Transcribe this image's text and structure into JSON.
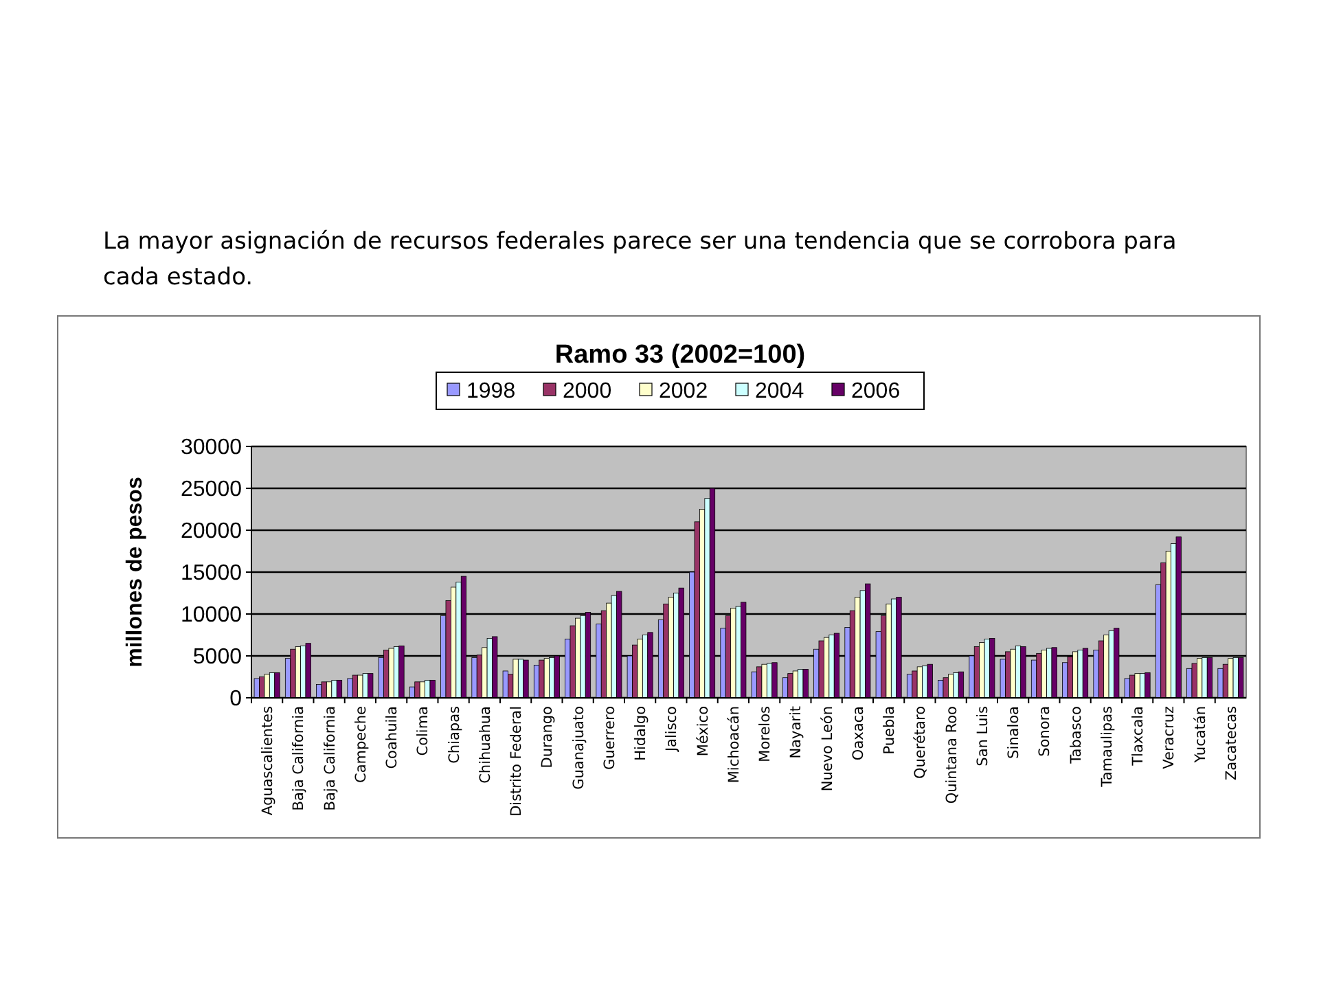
{
  "chart_data": {
    "type": "bar",
    "title": "Ramo 33 (2002=100)",
    "subtitle": "La mayor asignación de recursos federales parece ser una tendencia que se corrobora para cada estado.",
    "ylabel": "millones de pesos",
    "categories": [
      "Aguascalientes",
      "Baja California",
      "Baja California",
      "Campeche",
      "Coahuila",
      "Colima",
      "Chiapas",
      "Chihuahua",
      "Distrito Federal",
      "Durango",
      "Guanajuato",
      "Guerrero",
      "Hidalgo",
      "Jalisco",
      "México",
      "Michoacán",
      "Morelos",
      "Nayarit",
      "Nuevo León",
      "Oaxaca",
      "Puebla",
      "Querétaro",
      "Quintana Roo",
      "San Luis",
      "Sinaloa",
      "Sonora",
      "Tabasco",
      "Tamaulipas",
      "Tlaxcala",
      "Veracruz",
      "Yucatán",
      "Zacatecas"
    ],
    "series": [
      {
        "name": "1998",
        "color": "#9999ff",
        "values": [
          2300,
          4700,
          1600,
          2300,
          4800,
          1300,
          9800,
          4800,
          3200,
          3900,
          7000,
          8800,
          5000,
          9300,
          15000,
          8300,
          3100,
          2400,
          5800,
          8400,
          7900,
          2800,
          2100,
          5000,
          4600,
          4500,
          4200,
          5700,
          2300,
          13500,
          3500,
          3500
        ]
      },
      {
        "name": "2000",
        "color": "#993366",
        "values": [
          2500,
          5800,
          1900,
          2700,
          5700,
          1900,
          11600,
          5100,
          2800,
          4500,
          8600,
          10400,
          6300,
          11200,
          21000,
          9800,
          3700,
          2900,
          6800,
          10400,
          9800,
          3200,
          2400,
          6100,
          5500,
          5300,
          4900,
          6800,
          2700,
          16100,
          4100,
          4000
        ]
      },
      {
        "name": "2002",
        "color": "#ffffcc",
        "values": [
          2800,
          6100,
          1900,
          2700,
          5900,
          1900,
          13200,
          6000,
          4600,
          4700,
          9500,
          11300,
          7000,
          12000,
          22500,
          10700,
          4000,
          3200,
          7200,
          12000,
          11200,
          3700,
          2800,
          6600,
          5800,
          5700,
          5500,
          7500,
          2900,
          17500,
          4700,
          4700
        ]
      },
      {
        "name": "2004",
        "color": "#ccffff",
        "values": [
          3000,
          6200,
          2100,
          2900,
          6100,
          2100,
          13800,
          7100,
          4600,
          4800,
          9800,
          12200,
          7500,
          12500,
          23800,
          10900,
          4100,
          3400,
          7500,
          12800,
          11800,
          3800,
          3000,
          7000,
          6200,
          5900,
          5700,
          8000,
          2900,
          18400,
          4800,
          4800
        ]
      },
      {
        "name": "2006",
        "color": "#660066",
        "values": [
          3000,
          6500,
          2100,
          2900,
          6200,
          2100,
          14500,
          7300,
          4500,
          5000,
          10200,
          12700,
          7800,
          13100,
          25000,
          11400,
          4200,
          3400,
          7700,
          13600,
          12000,
          4000,
          3100,
          7100,
          6100,
          6000,
          5900,
          8300,
          3000,
          19200,
          4800,
          4800
        ]
      }
    ],
    "ylim": [
      0,
      30000
    ],
    "yticks": [
      0,
      5000,
      10000,
      15000,
      20000,
      25000,
      30000
    ],
    "grid": "y",
    "legend": "top"
  }
}
